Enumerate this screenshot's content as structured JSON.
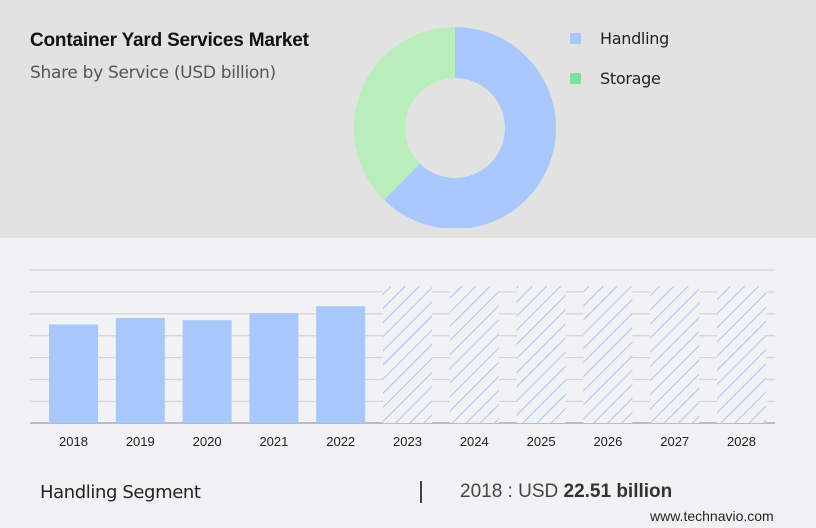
{
  "header": {
    "title": "Container Yard Services Market",
    "subtitle": "Share by Service (USD billion)"
  },
  "legend": [
    {
      "label": "Handling",
      "color": "#a8c8fc"
    },
    {
      "label": "Storage",
      "color": "#7de39a"
    }
  ],
  "footer": {
    "segment_label": "Handling Segment",
    "year_prefix": "2018 : USD ",
    "value_bold": "22.51 billion",
    "source": "www.technavio.com"
  },
  "colors": {
    "header_bg": "#e2e2e2",
    "body_bg": "#f2f2f4",
    "handling": "#a8c8fc",
    "storage_donut": "#b8eeba",
    "storage_legend": "#7de39a",
    "gridline": "#d6d6d6",
    "axis": "#aaaaaa"
  },
  "chart_data": [
    {
      "type": "pie",
      "title": "Container Yard Services Market",
      "subtitle": "Share by Service (USD billion)",
      "donut": true,
      "categories": [
        "Handling",
        "Storage"
      ],
      "values": [
        62.4,
        37.6
      ],
      "unit": "% share (estimated from arc angle)",
      "legend_position": "right"
    },
    {
      "type": "bar",
      "title": "Handling Segment",
      "categories": [
        "2018",
        "2019",
        "2020",
        "2021",
        "2022",
        "2023",
        "2024",
        "2025",
        "2026",
        "2027",
        "2028"
      ],
      "values": [
        22.51,
        24.0,
        23.5,
        25.1,
        26.7,
        null,
        null,
        null,
        null,
        null,
        null
      ],
      "forecast_placeholder_height": 31.3,
      "forecast_years": [
        "2023",
        "2024",
        "2025",
        "2026",
        "2027",
        "2028"
      ],
      "forecast_style": "hatched",
      "annotation": "2018 : USD 22.51 billion",
      "xlabel": "",
      "ylabel": "USD billion",
      "ylim": [
        0,
        35
      ],
      "grid": true,
      "legend": false
    }
  ]
}
